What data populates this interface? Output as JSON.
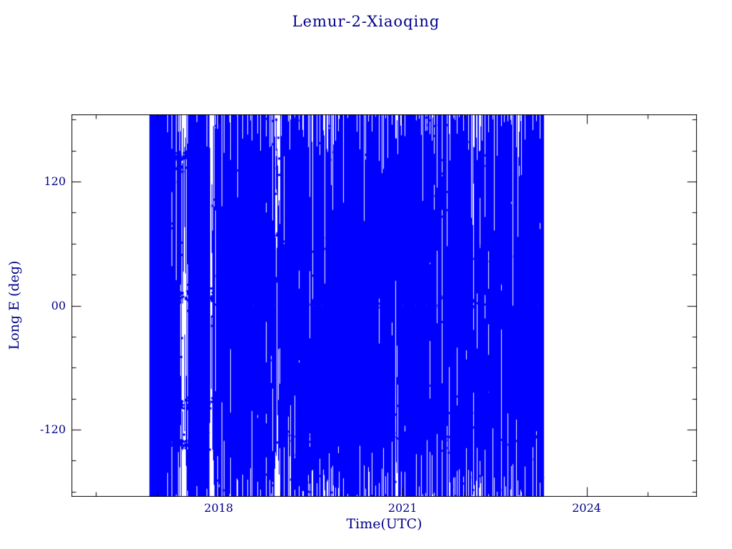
{
  "chart_data": {
    "type": "line",
    "title": "Lemur-2-Xiaoqing",
    "xlabel": "Time(UTC)",
    "ylabel": "Long E (deg)",
    "xlim": [
      2015.6,
      2025.8
    ],
    "ylim": [
      -185,
      185
    ],
    "x_major_ticks": [
      {
        "value": 2018,
        "label": "2018"
      },
      {
        "value": 2021,
        "label": "2021"
      },
      {
        "value": 2024,
        "label": "2024"
      }
    ],
    "x_minor_step": 1,
    "y_major_ticks": [
      {
        "value": 120,
        "label": "120"
      },
      {
        "value": 0,
        "label": "00"
      },
      {
        "value": -120,
        "label": "-120"
      }
    ],
    "y_minor_step": 30,
    "grid": false,
    "legend": null,
    "series_color": "#0000ff",
    "text_color": "#00008b",
    "frame_color": "#000000",
    "description": "Sub-satellite longitude (deg E) versus time; dense wrapping ground-track traces appear as near-solid vertical blue striping spanning roughly late 2016 through early 2023, with small square sample markers clustered in horizontal bands.",
    "data_x_range": [
      2016.87,
      2023.3
    ],
    "render": {
      "seed": 42,
      "vertical_strokes": 6000,
      "full_height_fraction": 0.15,
      "dense_start_fraction": 0.22,
      "dense_start_end": 2017.12,
      "marker_size": 3,
      "scatter_markers": 500,
      "marker_bands": [
        {
          "y": 145,
          "x0": 2016.9,
          "x1": 2017.7,
          "count": 90,
          "jitter": 4
        },
        {
          "y": 132,
          "x0": 2017.0,
          "x1": 2017.6,
          "count": 40,
          "jitter": 3
        },
        {
          "y": 8,
          "x0": 2016.9,
          "x1": 2017.9,
          "count": 120,
          "jitter": 6
        },
        {
          "y": 5,
          "x0": 2019.3,
          "x1": 2022.9,
          "count": 140,
          "jitter": 8
        },
        {
          "y": -94,
          "x0": 2016.9,
          "x1": 2017.9,
          "count": 110,
          "jitter": 6
        },
        {
          "y": -104,
          "x0": 2019.5,
          "x1": 2023.2,
          "count": 120,
          "jitter": 7
        },
        {
          "y": -134,
          "x0": 2016.9,
          "x1": 2017.6,
          "count": 70,
          "jitter": 4
        },
        {
          "y": -128,
          "x0": 2019.0,
          "x1": 2023.2,
          "count": 90,
          "jitter": 6
        },
        {
          "y": 60,
          "x0": 2018.2,
          "x1": 2020.5,
          "count": 60,
          "jitter": 10
        }
      ],
      "gaps": [
        {
          "x": 2017.42,
          "w": 0.14,
          "keep": 0.2
        },
        {
          "x": 2017.9,
          "w": 0.1,
          "keep": 0.25
        },
        {
          "x": 2018.95,
          "w": 0.07,
          "keep": 0.45
        },
        {
          "x": 2019.55,
          "w": 0.06,
          "keep": 0.5
        },
        {
          "x": 2020.9,
          "w": 0.05,
          "keep": 0.5
        },
        {
          "x": 2022.15,
          "w": 0.05,
          "keep": 0.5
        }
      ]
    }
  }
}
